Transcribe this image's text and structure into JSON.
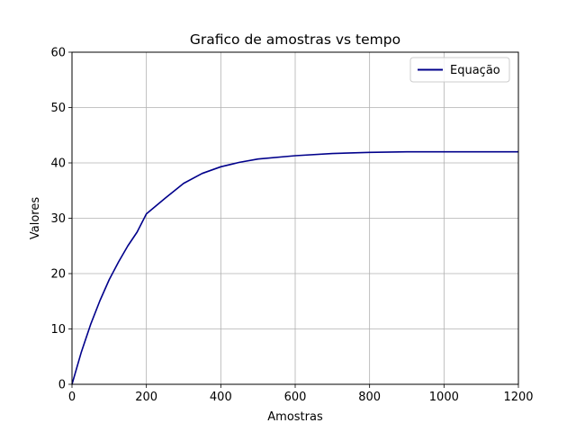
{
  "chart_data": {
    "type": "line",
    "title": "Grafico de amostras vs tempo",
    "xlabel": "Amostras",
    "ylabel": "Valores",
    "xlim": [
      0,
      1200
    ],
    "ylim": [
      0,
      60
    ],
    "xticks": [
      "0",
      "200",
      "400",
      "600",
      "800",
      "1000",
      "1200"
    ],
    "yticks": [
      "0",
      "10",
      "20",
      "30",
      "40",
      "50",
      "60"
    ],
    "grid": true,
    "legend_position": "top-right",
    "series": [
      {
        "name": "Equação",
        "color": "#00008b",
        "x": [
          0,
          25,
          50,
          75,
          100,
          125,
          150,
          175,
          200,
          250,
          300,
          350,
          400,
          450,
          500,
          600,
          700,
          800,
          900,
          1000,
          1100,
          1200
        ],
        "y": [
          0,
          5.8,
          10.8,
          15.1,
          18.9,
          22.1,
          25.0,
          27.5,
          30.8,
          33.6,
          36.3,
          38.1,
          39.3,
          40.1,
          40.7,
          41.3,
          41.7,
          41.9,
          42.0,
          42.0,
          42.0,
          42.0
        ]
      }
    ]
  }
}
